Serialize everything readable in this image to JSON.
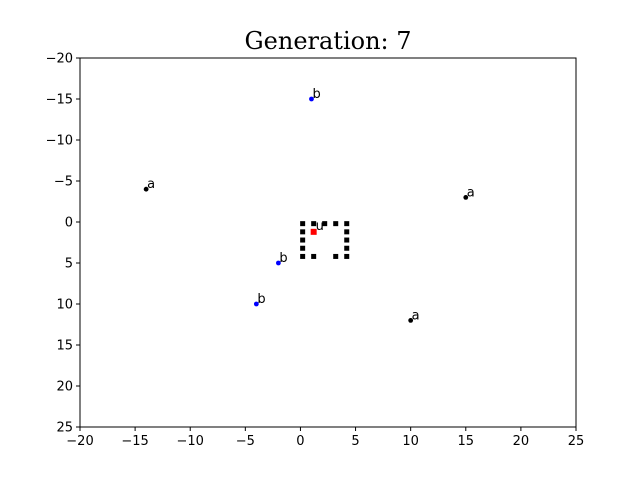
{
  "chart_data": {
    "type": "scatter",
    "title": "Generation: 7",
    "xlabel": "",
    "ylabel": "",
    "xlim": [
      -20,
      25
    ],
    "ylim": [
      -20,
      25
    ],
    "y_inverted": true,
    "grid": false,
    "x_ticks": [
      -20,
      -15,
      -10,
      -5,
      0,
      5,
      10,
      15,
      20,
      25
    ],
    "y_ticks": [
      -20,
      -15,
      -10,
      -5,
      0,
      5,
      10,
      15,
      20,
      25
    ],
    "x_tick_labels": [
      "−20",
      "−15",
      "−10",
      "−5",
      "0",
      "5",
      "10",
      "15",
      "20",
      "25"
    ],
    "y_tick_labels": [
      "−20",
      "−15",
      "−10",
      "−5",
      "0",
      "5",
      "10",
      "15",
      "20",
      "25"
    ],
    "colors": {
      "a": "#000000",
      "b": "#0000ff",
      "grid_cells": "#000000",
      "center": "#ff0000"
    },
    "labeled_points": [
      {
        "label": "b",
        "x": 1,
        "y": -15,
        "color": "#0000ff"
      },
      {
        "label": "a",
        "x": -14,
        "y": -4,
        "color": "#000000"
      },
      {
        "label": "a",
        "x": 15,
        "y": -3,
        "color": "#000000"
      },
      {
        "label": "b",
        "x": -2,
        "y": 5,
        "color": "#0000ff"
      },
      {
        "label": "b",
        "x": -4,
        "y": 10,
        "color": "#0000ff"
      },
      {
        "label": "a",
        "x": 10,
        "y": 12,
        "color": "#000000"
      }
    ],
    "grid_cells": [
      {
        "x": 0.2,
        "y": 0.2
      },
      {
        "x": 1.2,
        "y": 0.2
      },
      {
        "x": 2.2,
        "y": 0.2
      },
      {
        "x": 3.2,
        "y": 0.2
      },
      {
        "x": 4.2,
        "y": 0.2
      },
      {
        "x": 0.2,
        "y": 1.2
      },
      {
        "x": 4.2,
        "y": 1.2
      },
      {
        "x": 0.2,
        "y": 2.2
      },
      {
        "x": 4.2,
        "y": 2.2
      },
      {
        "x": 0.2,
        "y": 3.2
      },
      {
        "x": 4.2,
        "y": 3.2
      },
      {
        "x": 0.2,
        "y": 4.2
      },
      {
        "x": 1.2,
        "y": 4.2
      },
      {
        "x": 3.2,
        "y": 4.2
      },
      {
        "x": 4.2,
        "y": 4.2
      }
    ],
    "center_point": {
      "label": "u",
      "x": 1.2,
      "y": 1.2,
      "color": "#ff0000"
    }
  }
}
